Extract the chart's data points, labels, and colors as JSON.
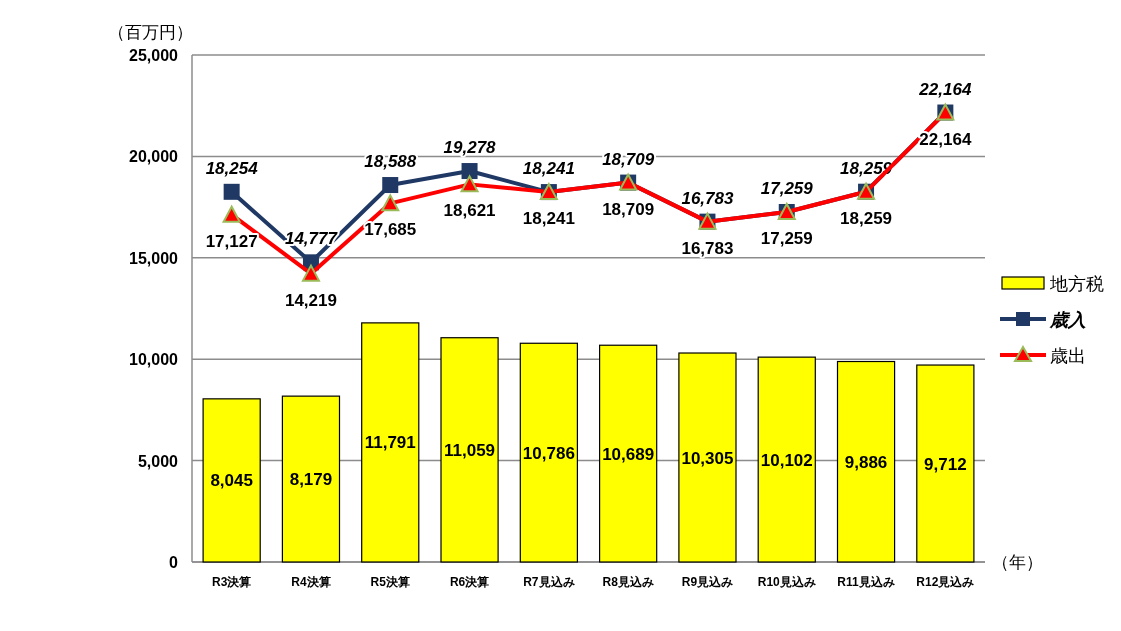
{
  "chart_data": {
    "type": "bar",
    "ylabel": "（百万円）",
    "xlabel": "（年）",
    "categories": [
      "R3決算",
      "R4決算",
      "R5決算",
      "R6決算",
      "R7見込み",
      "R8見込み",
      "R9見込み",
      "R10見込み",
      "R11見込み",
      "R12見込み"
    ],
    "ylim": [
      0,
      25000
    ],
    "yticks": [
      0,
      {
        "value": 5000,
        "label": "5,000"
      },
      {
        "value": 10000,
        "label": "10,000"
      },
      {
        "value": 15000,
        "label": "15,000"
      },
      {
        "value": 20000,
        "label": "20,000"
      },
      {
        "value": 25000,
        "label": "25,000"
      }
    ],
    "grid": "y",
    "legend": "right",
    "series": [
      {
        "name": "地方税",
        "color": "#ffff00",
        "values": [
          8045,
          8179,
          11791,
          11059,
          10786,
          10689,
          10305,
          10102,
          9886,
          9712
        ],
        "value_labels": [
          "8,045",
          "8,179",
          "11,791",
          "11,059",
          "10,786",
          "10,689",
          "10,305",
          "10,102",
          "9,886",
          "9,712"
        ]
      },
      {
        "name": "歳入",
        "type": "line",
        "color": "#1f3864",
        "marker": "square",
        "values": [
          18254,
          14777,
          18588,
          19278,
          18241,
          18709,
          16783,
          17259,
          18259,
          22164
        ],
        "value_labels": [
          "18,254",
          "14,777",
          "18,588",
          "19,278",
          "18,241",
          "18,709",
          "16,783",
          "17,259",
          "18,259",
          "22,164"
        ]
      },
      {
        "name": "歳出",
        "type": "line",
        "color": "#ff0000",
        "marker": "triangle",
        "values": [
          17127,
          14219,
          17685,
          18621,
          18241,
          18709,
          16783,
          17259,
          18259,
          22164
        ],
        "value_labels": [
          "17,127",
          "14,219",
          "17,685",
          "18,621",
          "18,241",
          "18,709",
          "16,783",
          "17,259",
          "18,259",
          "22,164"
        ]
      }
    ]
  }
}
